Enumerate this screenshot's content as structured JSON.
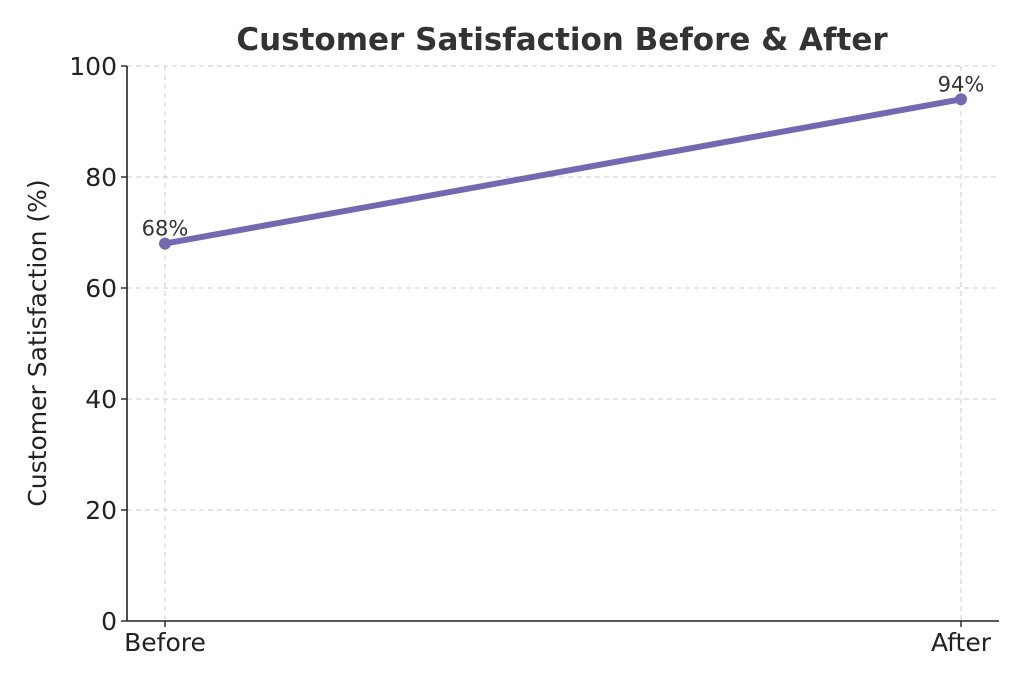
{
  "chart_data": {
    "type": "line",
    "title": "Customer Satisfaction Before & After",
    "xlabel": "",
    "ylabel": "Customer Satisfaction (%)",
    "categories": [
      "Before",
      "After"
    ],
    "series": [
      {
        "values": [
          68,
          94
        ],
        "labels": [
          "68%",
          "94%"
        ],
        "color": "#7468b0"
      }
    ],
    "ylim": [
      0,
      100
    ],
    "yticks": [
      0,
      20,
      40,
      60,
      80,
      100
    ],
    "ytick_labels": [
      "0",
      "20",
      "40",
      "60",
      "80",
      "100"
    ],
    "grid": true,
    "legend": "none"
  }
}
